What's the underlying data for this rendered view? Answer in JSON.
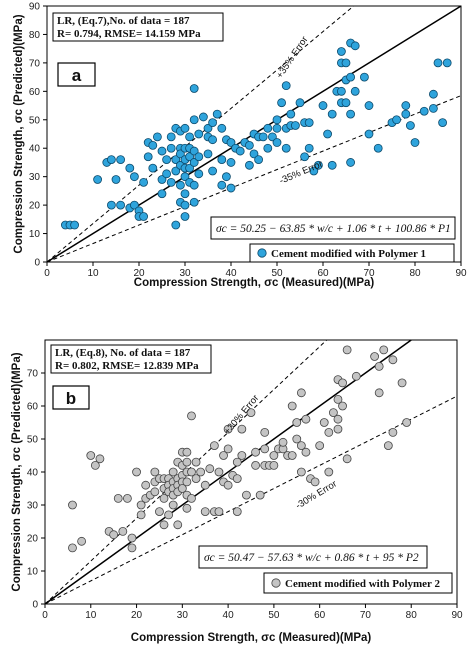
{
  "chart_data": [
    {
      "type": "scatter",
      "panel_label": "a",
      "xlabel": "Compression Strength, σc (Measured)(MPa)",
      "ylabel": "Compression Strength, σc (Predicted)(MPa)",
      "xlim": [
        0,
        90
      ],
      "ylim": [
        0,
        90
      ],
      "xticks": [
        "0",
        "10",
        "20",
        "30",
        "40",
        "50",
        "60",
        "70",
        "80",
        "90"
      ],
      "yticks": [
        "0",
        "10",
        "20",
        "30",
        "40",
        "50",
        "60",
        "70",
        "80",
        "90"
      ],
      "stats_lines": [
        "LR, (Eq.7),No. of data = 187",
        "R= 0.794, RMSE= 14.159 MPa"
      ],
      "equation": "σc = 50.25 − 63.85 * w/c + 1.06 * t + 100.86 * P1",
      "legend": "Cement modified with Polymer 1",
      "error_labels": [
        "+35% Error",
        "-35% Error"
      ],
      "error_bounds": [
        1.35,
        0.65
      ],
      "marker_color": "#2fa4dc",
      "series": [
        {
          "name": "Cement modified with Polymer 1",
          "points": [
            [
              4,
              13
            ],
            [
              5,
              13
            ],
            [
              6,
              13
            ],
            [
              11,
              29
            ],
            [
              13,
              35
            ],
            [
              14,
              20
            ],
            [
              14,
              36
            ],
            [
              15,
              29
            ],
            [
              16,
              36
            ],
            [
              16,
              20
            ],
            [
              18,
              33
            ],
            [
              18,
              19
            ],
            [
              19,
              30
            ],
            [
              19,
              20
            ],
            [
              20,
              18
            ],
            [
              20,
              16
            ],
            [
              21,
              16
            ],
            [
              21,
              28
            ],
            [
              22,
              37
            ],
            [
              22,
              42
            ],
            [
              23,
              41
            ],
            [
              23,
              33
            ],
            [
              24,
              44
            ],
            [
              25,
              29
            ],
            [
              25,
              24
            ],
            [
              25,
              39
            ],
            [
              26,
              36
            ],
            [
              26,
              31
            ],
            [
              27,
              40
            ],
            [
              27,
              28
            ],
            [
              27,
              44
            ],
            [
              28,
              47
            ],
            [
              28,
              36
            ],
            [
              28,
              32
            ],
            [
              28,
              13
            ],
            [
              29,
              46
            ],
            [
              29,
              40
            ],
            [
              29,
              38
            ],
            [
              29,
              34
            ],
            [
              29,
              27
            ],
            [
              29,
              21
            ],
            [
              30,
              47
            ],
            [
              30,
              40
            ],
            [
              30,
              36
            ],
            [
              30,
              33
            ],
            [
              30,
              30
            ],
            [
              30,
              24
            ],
            [
              30,
              20
            ],
            [
              30,
              16
            ],
            [
              31,
              44
            ],
            [
              31,
              40
            ],
            [
              31,
              37
            ],
            [
              31,
              33
            ],
            [
              31,
              28
            ],
            [
              32,
              61
            ],
            [
              32,
              50
            ],
            [
              32,
              39
            ],
            [
              32,
              35
            ],
            [
              32,
              27
            ],
            [
              32,
              21
            ],
            [
              33,
              45
            ],
            [
              33,
              37
            ],
            [
              33,
              31
            ],
            [
              34,
              51
            ],
            [
              35,
              47
            ],
            [
              35,
              44
            ],
            [
              35,
              38
            ],
            [
              36,
              32
            ],
            [
              36,
              43
            ],
            [
              36,
              49
            ],
            [
              37,
              52
            ],
            [
              38,
              47
            ],
            [
              38,
              36
            ],
            [
              38,
              27
            ],
            [
              39,
              43
            ],
            [
              39,
              30
            ],
            [
              40,
              42
            ],
            [
              40,
              35
            ],
            [
              40,
              26
            ],
            [
              41,
              40
            ],
            [
              42,
              39
            ],
            [
              43,
              42
            ],
            [
              44,
              34
            ],
            [
              44,
              41
            ],
            [
              45,
              45
            ],
            [
              45,
              38
            ],
            [
              46,
              36
            ],
            [
              46,
              44
            ],
            [
              47,
              44
            ],
            [
              48,
              40
            ],
            [
              48,
              47
            ],
            [
              49,
              44
            ],
            [
              50,
              47
            ],
            [
              50,
              42
            ],
            [
              50,
              50
            ],
            [
              51,
              56
            ],
            [
              52,
              62
            ],
            [
              52,
              47
            ],
            [
              52,
              40
            ],
            [
              53,
              48
            ],
            [
              53,
              52
            ],
            [
              54,
              48
            ],
            [
              55,
              56
            ],
            [
              56,
              49
            ],
            [
              56,
              37
            ],
            [
              57,
              49
            ],
            [
              57,
              40
            ],
            [
              58,
              32
            ],
            [
              59,
              34
            ],
            [
              60,
              55
            ],
            [
              61,
              45
            ],
            [
              62,
              52
            ],
            [
              62,
              34
            ],
            [
              63,
              60
            ],
            [
              64,
              74
            ],
            [
              64,
              70
            ],
            [
              64,
              60
            ],
            [
              64,
              56
            ],
            [
              65,
              70
            ],
            [
              65,
              64
            ],
            [
              65,
              56
            ],
            [
              66,
              77
            ],
            [
              66,
              65
            ],
            [
              66,
              52
            ],
            [
              66,
              35
            ],
            [
              67,
              76
            ],
            [
              67,
              60
            ],
            [
              69,
              65
            ],
            [
              70,
              55
            ],
            [
              70,
              45
            ],
            [
              72,
              40
            ],
            [
              75,
              49
            ],
            [
              76,
              50
            ],
            [
              78,
              52
            ],
            [
              78,
              55
            ],
            [
              79,
              48
            ],
            [
              80,
              42
            ],
            [
              82,
              53
            ],
            [
              84,
              54
            ],
            [
              84,
              59
            ],
            [
              85,
              70
            ],
            [
              86,
              49
            ],
            [
              87,
              70
            ]
          ]
        }
      ]
    },
    {
      "type": "scatter",
      "panel_label": "b",
      "xlabel": "Compression Strength, σc (Measured)(MPa)",
      "ylabel": "Compression Strength, σc (Predicted)(MPa)",
      "xlim": [
        0,
        90
      ],
      "ylim": [
        0,
        80
      ],
      "xticks": [
        "0",
        "10",
        "20",
        "30",
        "40",
        "50",
        "60",
        "70",
        "80",
        "90"
      ],
      "yticks": [
        "0",
        "10",
        "20",
        "30",
        "40",
        "50",
        "60",
        "70"
      ],
      "stats_lines": [
        "LR, (Eq.8), No. of data = 187",
        "R= 0.802, RMSE= 12.839 MPa"
      ],
      "equation": "σc = 50.47 − 57.63 * w/c + 0.86 * t + 95 * P2",
      "legend": "Cement modified with Polymer 2",
      "error_labels": [
        "+30% Error",
        "-30% Error"
      ],
      "error_bounds": [
        1.3,
        0.7
      ],
      "marker_color": "#c4c4c4",
      "series": [
        {
          "name": "Cement modified with Polymer 2",
          "points": [
            [
              6,
              17
            ],
            [
              6,
              30
            ],
            [
              8,
              19
            ],
            [
              10,
              45
            ],
            [
              11,
              42
            ],
            [
              12,
              44
            ],
            [
              14,
              22
            ],
            [
              15,
              21
            ],
            [
              16,
              32
            ],
            [
              17,
              22
            ],
            [
              18,
              32
            ],
            [
              19,
              20
            ],
            [
              19,
              17
            ],
            [
              20,
              40
            ],
            [
              21,
              30
            ],
            [
              21,
              27
            ],
            [
              22,
              36
            ],
            [
              22,
              32
            ],
            [
              23,
              33
            ],
            [
              24,
              37
            ],
            [
              24,
              40
            ],
            [
              24,
              34
            ],
            [
              25,
              38
            ],
            [
              25,
              28
            ],
            [
              26,
              38
            ],
            [
              26,
              35
            ],
            [
              26,
              32
            ],
            [
              26,
              24
            ],
            [
              27,
              38
            ],
            [
              27,
              36
            ],
            [
              27,
              34
            ],
            [
              27,
              27
            ],
            [
              28,
              40
            ],
            [
              28,
              37
            ],
            [
              28,
              35
            ],
            [
              28,
              33
            ],
            [
              28,
              30
            ],
            [
              29,
              43
            ],
            [
              29,
              38
            ],
            [
              29,
              36
            ],
            [
              29,
              34
            ],
            [
              29,
              24
            ],
            [
              30,
              46
            ],
            [
              30,
              42
            ],
            [
              30,
              39
            ],
            [
              30,
              37
            ],
            [
              30,
              35
            ],
            [
              31,
              46
            ],
            [
              31,
              43
            ],
            [
              31,
              40
            ],
            [
              31,
              37
            ],
            [
              31,
              33
            ],
            [
              31,
              29
            ],
            [
              32,
              57
            ],
            [
              32,
              40
            ],
            [
              32,
              32
            ],
            [
              33,
              43
            ],
            [
              33,
              38
            ],
            [
              34,
              40
            ],
            [
              35,
              28
            ],
            [
              35,
              36
            ],
            [
              36,
              41
            ],
            [
              37,
              48
            ],
            [
              37,
              28
            ],
            [
              38,
              40
            ],
            [
              38,
              28
            ],
            [
              39,
              45
            ],
            [
              39,
              37
            ],
            [
              40,
              53
            ],
            [
              40,
              47
            ],
            [
              40,
              36
            ],
            [
              41,
              39
            ],
            [
              42,
              38
            ],
            [
              42,
              43
            ],
            [
              42,
              28
            ],
            [
              43,
              53
            ],
            [
              43,
              45
            ],
            [
              44,
              33
            ],
            [
              45,
              58
            ],
            [
              46,
              46
            ],
            [
              46,
              42
            ],
            [
              47,
              33
            ],
            [
              48,
              47
            ],
            [
              48,
              52
            ],
            [
              48,
              42
            ],
            [
              49,
              42
            ],
            [
              50,
              45
            ],
            [
              50,
              42
            ],
            [
              51,
              47
            ],
            [
              52,
              47
            ],
            [
              52,
              49
            ],
            [
              53,
              45
            ],
            [
              54,
              45
            ],
            [
              54,
              60
            ],
            [
              55,
              55
            ],
            [
              55,
              50
            ],
            [
              56,
              64
            ],
            [
              56,
              48
            ],
            [
              56,
              40
            ],
            [
              57,
              56
            ],
            [
              57,
              46
            ],
            [
              58,
              38
            ],
            [
              59,
              37
            ],
            [
              60,
              48
            ],
            [
              61,
              55
            ],
            [
              62,
              52
            ],
            [
              62,
              40
            ],
            [
              63,
              58
            ],
            [
              64,
              68
            ],
            [
              64,
              62
            ],
            [
              64,
              56
            ],
            [
              64,
              53
            ],
            [
              65,
              67
            ],
            [
              65,
              60
            ],
            [
              66,
              77
            ],
            [
              66,
              44
            ],
            [
              68,
              69
            ],
            [
              72,
              75
            ],
            [
              73,
              72
            ],
            [
              73,
              64
            ],
            [
              74,
              77
            ],
            [
              75,
              48
            ],
            [
              76,
              74
            ],
            [
              76,
              52
            ],
            [
              78,
              67
            ],
            [
              79,
              55
            ]
          ]
        }
      ]
    }
  ]
}
